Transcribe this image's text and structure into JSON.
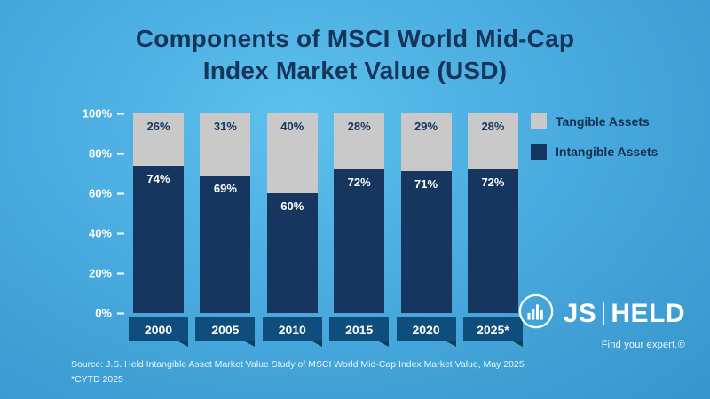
{
  "title": {
    "line1": "Components of MSCI World Mid-Cap",
    "line2": "Index Market Value (USD)"
  },
  "chart_data": {
    "type": "bar",
    "stacked": true,
    "title": "Components of MSCI World Mid-Cap Index Market Value (USD)",
    "categories": [
      "2000",
      "2005",
      "2010",
      "2015",
      "2020",
      "2025*"
    ],
    "series": [
      {
        "name": "Intangible Assets",
        "values": [
          74,
          69,
          60,
          72,
          71,
          72
        ],
        "color": "#16365f"
      },
      {
        "name": "Tangible Assets",
        "values": [
          26,
          31,
          40,
          28,
          29,
          28
        ],
        "color": "#c9c9c9"
      }
    ],
    "y_ticks": [
      "0%",
      "20%",
      "40%",
      "60%",
      "80%",
      "100%"
    ],
    "ylim": [
      0,
      100
    ],
    "grid": false,
    "legend_position": "top-right",
    "value_label_suffix": "%"
  },
  "legend": [
    {
      "label": "Tangible Assets",
      "color": "#c9c9c9"
    },
    {
      "label": "Intangible Assets",
      "color": "#16365f"
    }
  ],
  "colors": {
    "background_top": "#5ec0ec",
    "background_bottom": "#3795cb",
    "title_text": "#15355a",
    "intangible_bar": "#16365f",
    "tangible_bar": "#c9c9c9",
    "pedestal": "#0e4d7c",
    "tangible_value_text": "#17365c",
    "axis_text": "#ffffff"
  },
  "footer": {
    "source_line": "Source: J.S. Held Intangible Asset Market Value Study of MSCI World Mid-Cap Index Market Value, May 2025",
    "note_line": "*CYTD 2025"
  },
  "logo": {
    "text_js": "JS",
    "text_held": "HELD",
    "tagline": "Find your expert.®"
  }
}
